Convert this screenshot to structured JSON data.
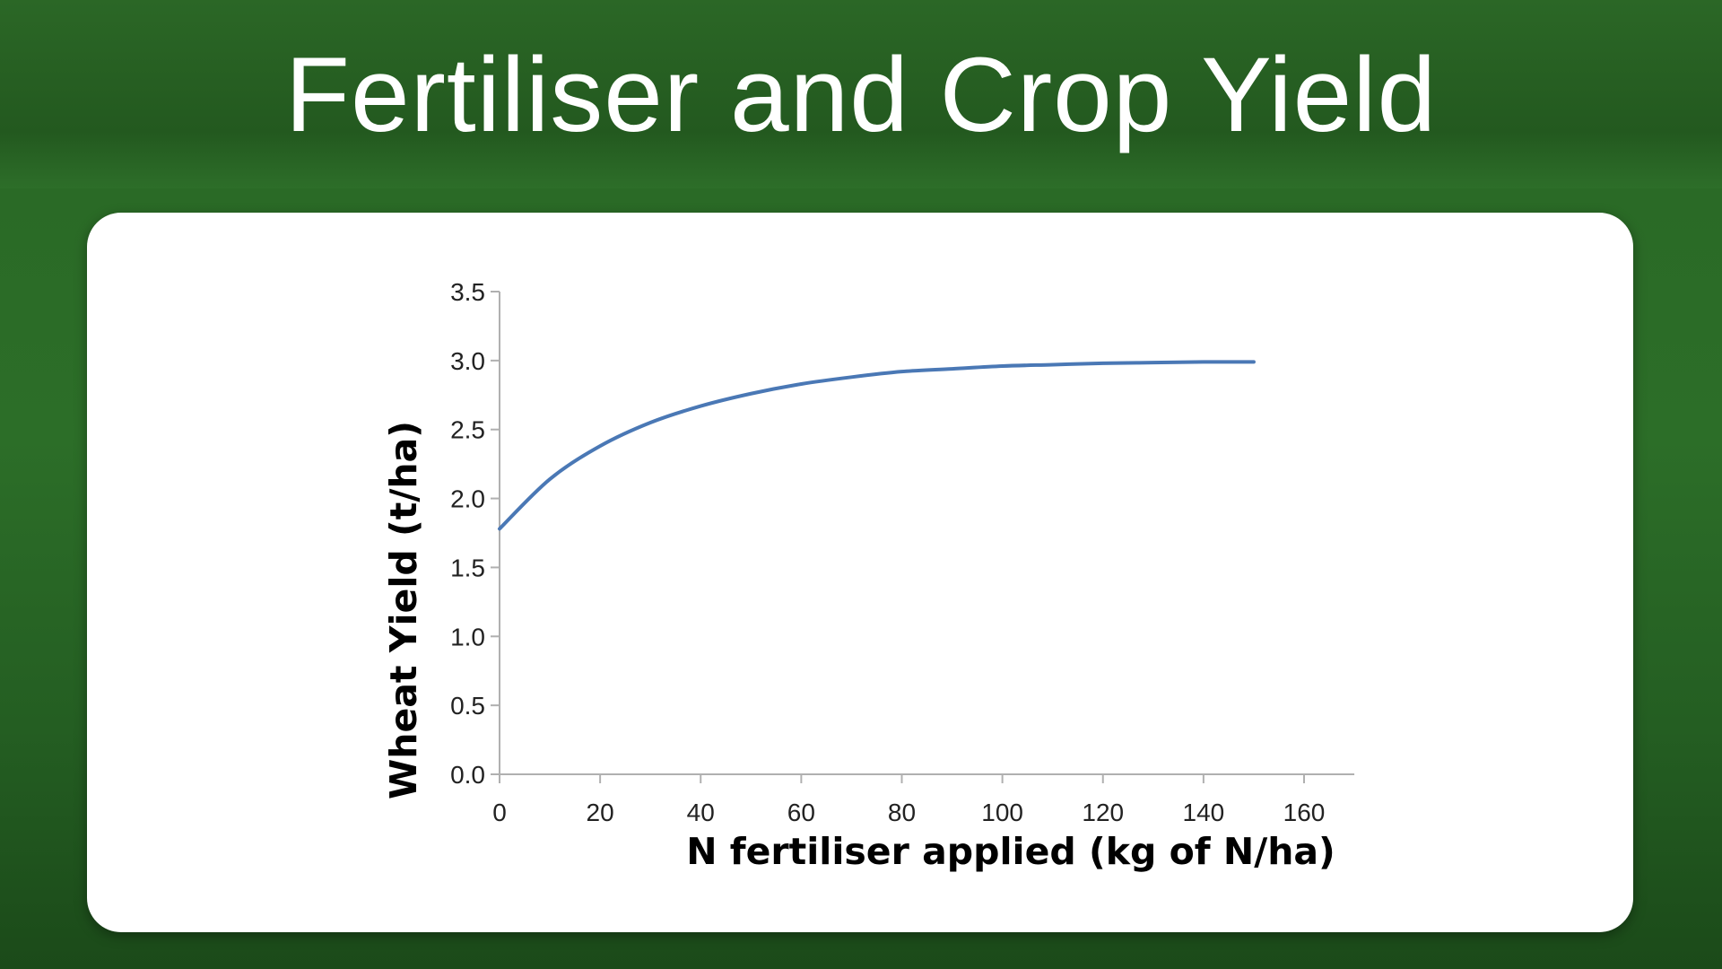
{
  "slide": {
    "title": "Fertiliser and Crop Yield"
  },
  "colors": {
    "series": "#4a78b5",
    "axis": "#b0b0b0"
  },
  "chart_data": {
    "type": "line",
    "title": "",
    "xlabel": "N fertiliser applied (kg of N/ha)",
    "ylabel": "Wheat Yield (t/ha)",
    "xlim": [
      0,
      170
    ],
    "ylim": [
      0,
      3.5
    ],
    "x_ticks": [
      "0",
      "20",
      "40",
      "60",
      "80",
      "100",
      "120",
      "140",
      "160"
    ],
    "y_ticks": [
      "0.0",
      "0.5",
      "1.0",
      "1.5",
      "2.0",
      "2.5",
      "3.0",
      "3.5"
    ],
    "grid": false,
    "legend": "none",
    "series": [
      {
        "x": [
          0,
          10,
          20,
          30,
          40,
          50,
          60,
          70,
          80,
          90,
          100,
          110,
          120,
          130,
          140,
          150
        ],
        "y": [
          1.78,
          2.14,
          2.38,
          2.55,
          2.67,
          2.76,
          2.83,
          2.88,
          2.92,
          2.94,
          2.96,
          2.97,
          2.98,
          2.985,
          2.99,
          2.99
        ]
      }
    ]
  }
}
